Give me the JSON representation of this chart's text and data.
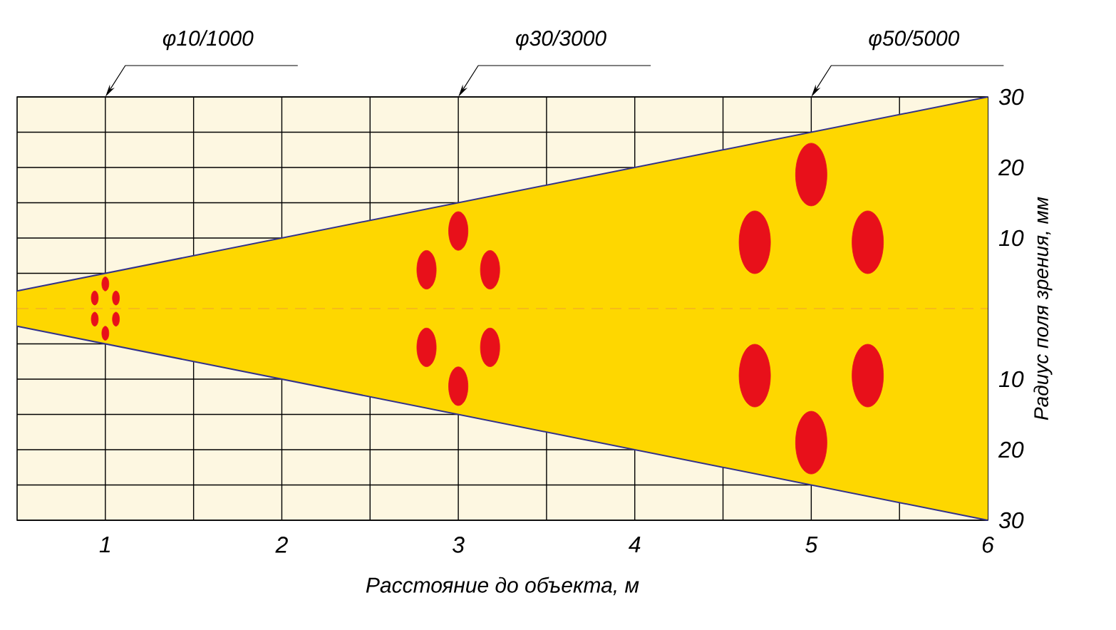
{
  "chart_data": {
    "type": "area",
    "xlabel": "Расстояние до объекта, м",
    "ylabel": "Радиус поля зрения, мм",
    "xlim": [
      0.5,
      6
    ],
    "ylim": [
      -30,
      30
    ],
    "xticks": [
      1,
      {
        "value": 1.5,
        "label": null
      },
      2,
      {
        "value": 2.5,
        "label": null
      },
      3,
      {
        "value": 3.5,
        "label": null
      },
      4,
      {
        "value": 4.5,
        "label": null
      },
      5,
      {
        "value": 5.5,
        "label": null
      },
      6
    ],
    "yticks": [
      {
        "value": -30,
        "label": "30"
      },
      {
        "value": -25,
        "label": null
      },
      {
        "value": -20,
        "label": "20"
      },
      {
        "value": -15,
        "label": null
      },
      {
        "value": -10,
        "label": "10"
      },
      {
        "value": -5,
        "label": null
      },
      {
        "value": 5,
        "label": null
      },
      10,
      {
        "value": 15,
        "label": null
      },
      20,
      {
        "value": 25,
        "label": null
      },
      30
    ],
    "grid": true,
    "series": [
      {
        "color": "#fed700",
        "x": [
          0.5,
          6
        ],
        "values": [
          2.5,
          30
        ]
      },
      {
        "color": "#fed700",
        "x": [
          0.5,
          6
        ],
        "values": [
          -2.5,
          -30
        ]
      },
      {
        "type": "line",
        "color": "#32328c",
        "x": [
          0.5,
          6
        ],
        "values": [
          2.5,
          30
        ]
      },
      {
        "type": "line",
        "color": "#32328c",
        "x": [
          0.5,
          6
        ],
        "values": [
          -2.5,
          -30
        ]
      },
      {
        "type": "bubble",
        "color": "#e8101a",
        "x": [
          1,
          0.94,
          1.06,
          0.94,
          1.06,
          1,
          3,
          2.82,
          3.18,
          2.82,
          3.18,
          3,
          5,
          4.68,
          5.32,
          4.68,
          5.32,
          5
        ],
        "values": [
          3.5,
          1.5,
          1.5,
          -1.5,
          -1.5,
          -3.5,
          11,
          5.5,
          5.5,
          -5.5,
          -5.5,
          -11,
          19,
          9.4,
          9.4,
          -9.5,
          -9.5,
          -19
        ],
        "sizes": [
          0.05,
          0.05,
          0.05,
          0.05,
          0.05,
          0.05,
          0.38,
          0.38,
          0.38,
          0.38,
          0.38,
          0.38,
          1,
          1,
          1,
          1,
          1,
          1
        ]
      }
    ],
    "ref_lines": [
      {
        "axis": "y",
        "value": 0,
        "color": "#f0a030",
        "line_style": "dashed"
      }
    ],
    "annotations": [
      "φ10/1000",
      "φ30/3000",
      "φ50/5000"
    ]
  }
}
